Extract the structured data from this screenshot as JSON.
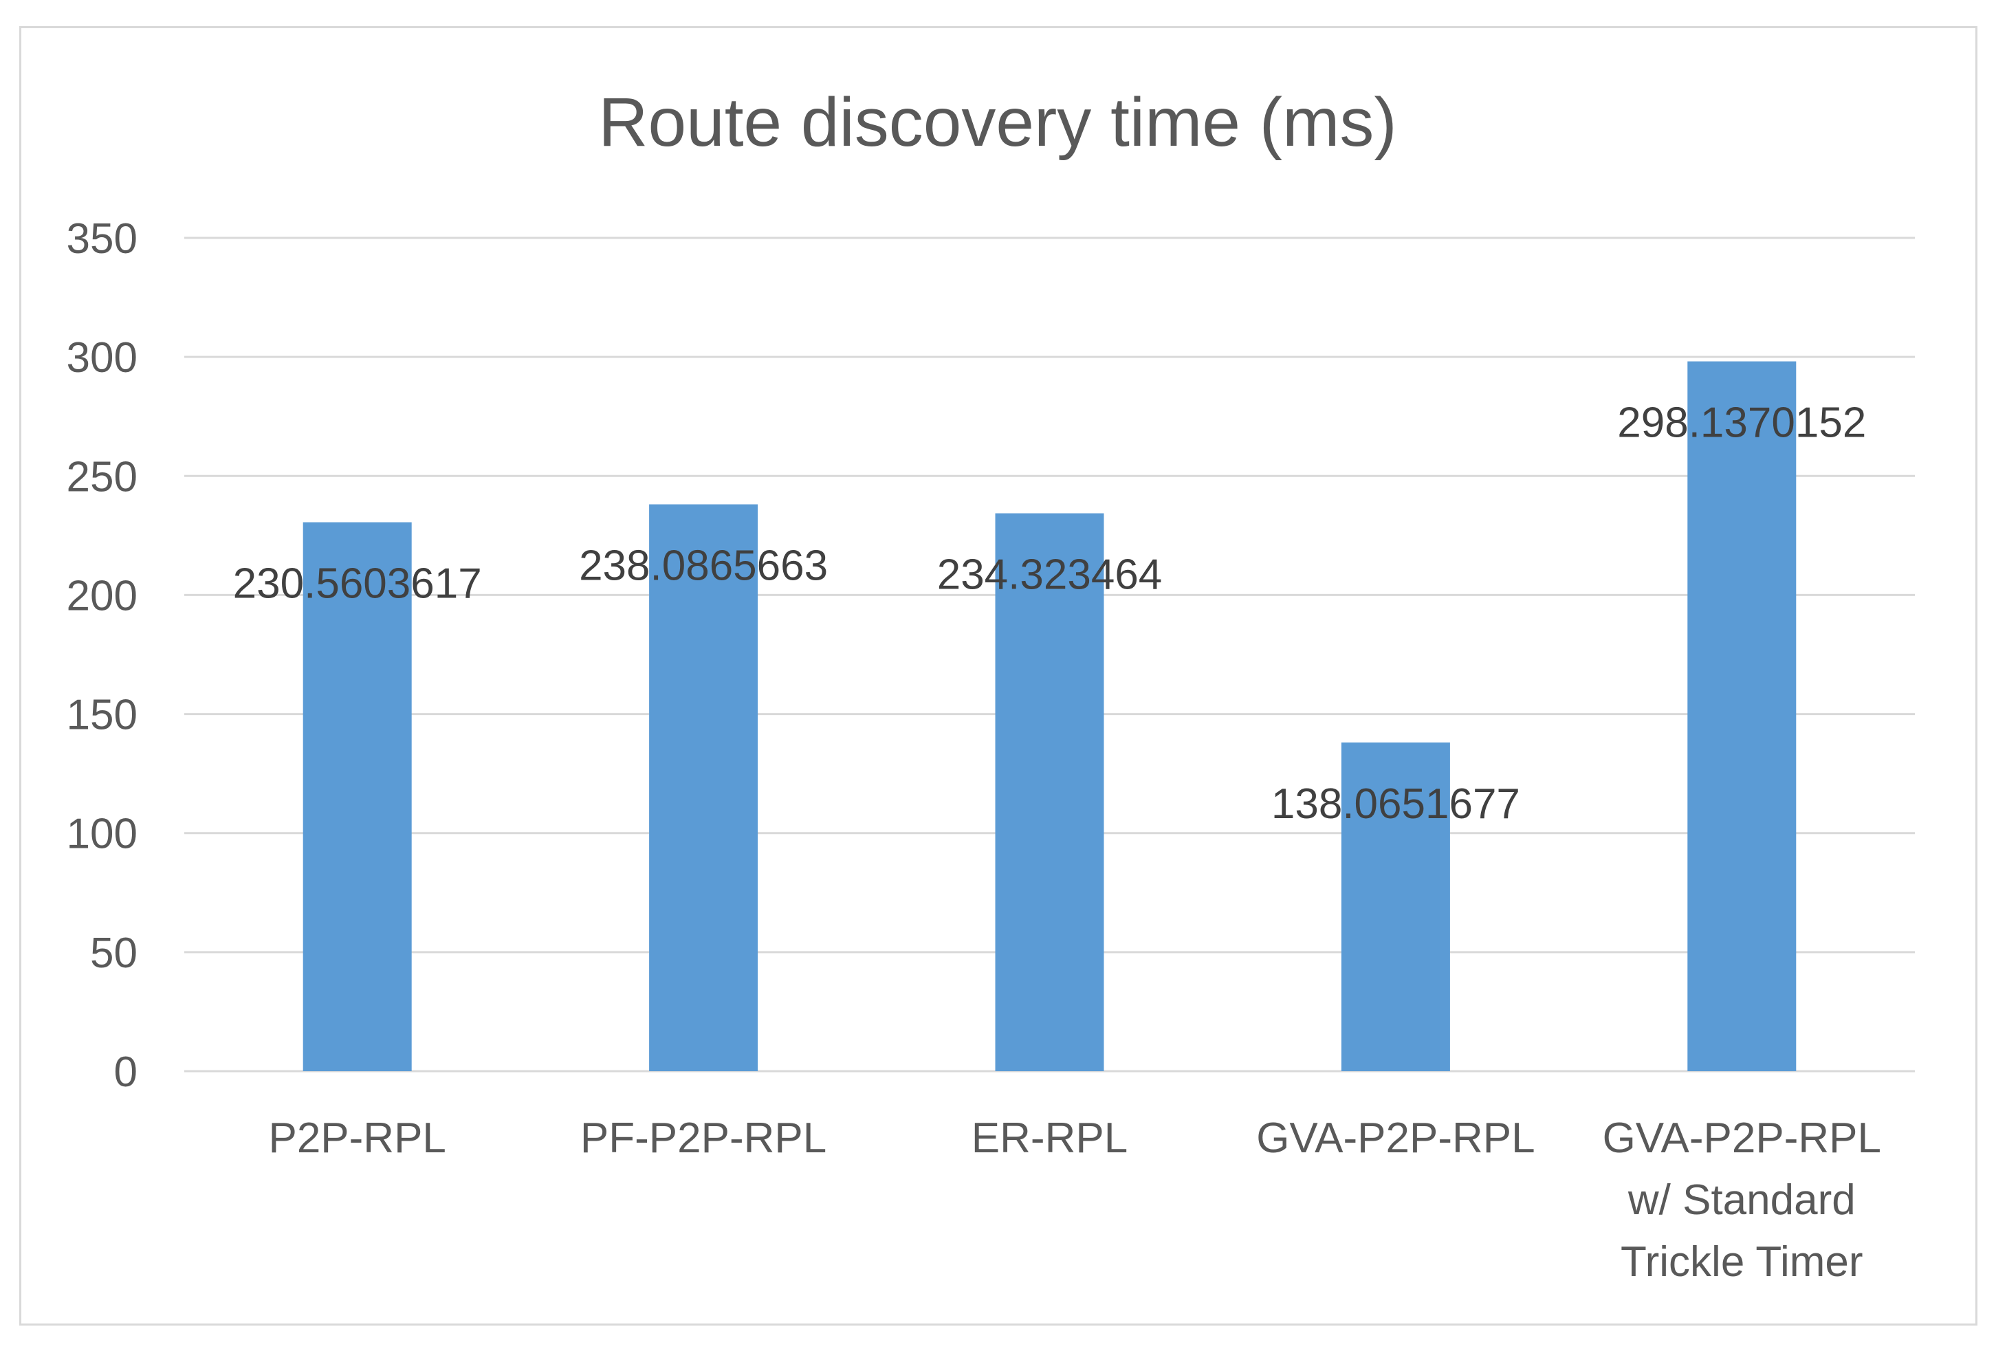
{
  "chart_data": {
    "type": "bar",
    "title": "Route discovery time (ms)",
    "xlabel": "",
    "ylabel": "",
    "categories": [
      [
        "P2P-RPL"
      ],
      [
        "PF-P2P-RPL"
      ],
      [
        "ER-RPL"
      ],
      [
        "GVA-P2P-RPL"
      ],
      [
        "GVA-P2P-RPL",
        "w/ Standard",
        "Trickle Timer"
      ]
    ],
    "values": [
      230.5603617,
      238.0865663,
      234.323464,
      138.0651677,
      298.1370152
    ],
    "data_labels": [
      "230.5603617",
      "238.0865663",
      "234.323464",
      "138.0651677",
      "298.1370152"
    ],
    "ylim": [
      0,
      350
    ],
    "yticks": [
      0,
      50,
      100,
      150,
      200,
      250,
      300,
      350
    ],
    "grid": true,
    "legend": "none",
    "colors": {
      "bar": "#5b9bd5",
      "grid": "#d9d9d9",
      "axis_text": "#595959",
      "label_text": "#404040"
    }
  }
}
